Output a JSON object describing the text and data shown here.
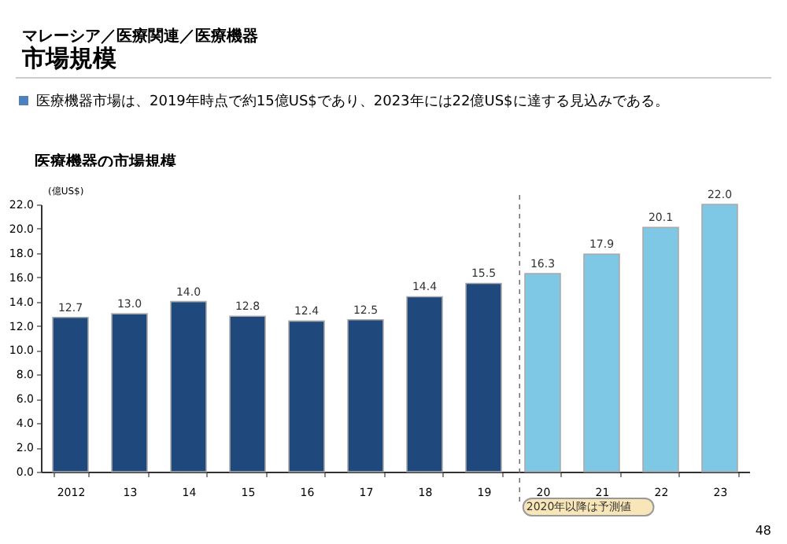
{
  "chart_data": {
    "type": "bar",
    "title": "医療機器の市場規模",
    "ylabel": "(億US$)",
    "annotations": [
      "マレーシア／医療関連／医療機器",
      "市場規模",
      "医療機器市場は、2019年時点で約15億US$であり、2023年には22億US$に達する見込みである。",
      "48"
    ],
    "categories": [
      "2012",
      "13",
      "14",
      "15",
      "16",
      "17",
      "18",
      "19",
      "20",
      "21",
      "22",
      "23"
    ],
    "values": [
      12.7,
      13.0,
      14.0,
      12.8,
      12.4,
      12.5,
      14.4,
      15.5,
      16.3,
      17.9,
      20.1,
      22.0
    ],
    "colors": [
      "#1f497d",
      "#1f497d",
      "#1f497d",
      "#1f497d",
      "#1f497d",
      "#1f497d",
      "#1f497d",
      "#1f497d",
      "#7ec8e6",
      "#7ec8e6",
      "#7ec8e6",
      "#7ec8e6"
    ],
    "ylim": [
      0,
      22
    ],
    "yticks": [
      {
        "value": 0,
        "label": "0.0"
      },
      {
        "value": 2,
        "label": "2.0"
      },
      {
        "value": 4,
        "label": "4.0"
      },
      {
        "value": 6,
        "label": "6.0"
      },
      {
        "value": 8,
        "label": "8.0"
      },
      {
        "value": 10,
        "label": "10.0"
      },
      {
        "value": 12,
        "label": "12.0"
      },
      {
        "value": 14,
        "label": "14.0"
      },
      {
        "value": 16,
        "label": "16.0"
      },
      {
        "value": 18,
        "label": "18.0"
      },
      {
        "value": 20,
        "label": "20.0"
      },
      {
        "value": 22,
        "label": "22.0"
      }
    ],
    "ref_lines": [
      {
        "axis": "x",
        "value": "20",
        "label": "2020年以降は予測値",
        "line_style": "dashed"
      }
    ],
    "value_labels": [
      "12.7",
      "13.0",
      "14.0",
      "12.8",
      "12.4",
      "12.5",
      "14.4",
      "15.5",
      "16.3",
      "17.9",
      "20.1",
      "22.0"
    ],
    "grid": false
  }
}
